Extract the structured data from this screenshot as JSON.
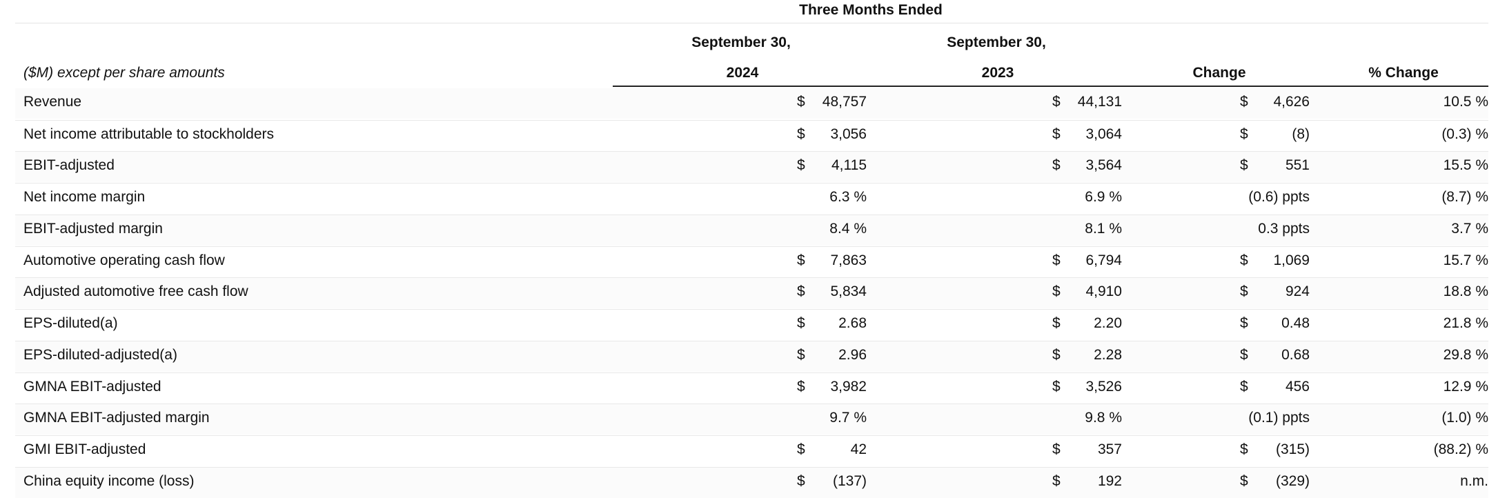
{
  "header": {
    "group": "Three Months Ended",
    "col1_top": "September 30,",
    "col1_bottom": "2024",
    "col2_top": "September 30,",
    "col2_bottom": "2023",
    "col3": "Change",
    "col4": "% Change",
    "row_label": "($M) except per share amounts"
  },
  "rows": [
    {
      "label": "Revenue",
      "d1": "$",
      "v1": "48,757",
      "d2": "$",
      "v2": "44,131",
      "d3": "$",
      "v3": "4,626",
      "v4": "10.5 %"
    },
    {
      "label": "Net income attributable to stockholders",
      "d1": "$",
      "v1": "3,056",
      "d2": "$",
      "v2": "3,064",
      "d3": "$",
      "v3": "(8)",
      "v4": "(0.3) %"
    },
    {
      "label": "EBIT-adjusted",
      "d1": "$",
      "v1": "4,115",
      "d2": "$",
      "v2": "3,564",
      "d3": "$",
      "v3": "551",
      "v4": "15.5 %"
    },
    {
      "label": "Net income margin",
      "d1": "",
      "v1": "6.3 %",
      "d2": "",
      "v2": "6.9 %",
      "d3": "",
      "v3": "(0.6) ppts",
      "v4": "(8.7) %"
    },
    {
      "label": "EBIT-adjusted margin",
      "d1": "",
      "v1": "8.4 %",
      "d2": "",
      "v2": "8.1 %",
      "d3": "",
      "v3": "0.3 ppts",
      "v4": "3.7 %"
    },
    {
      "label": "Automotive operating cash flow",
      "d1": "$",
      "v1": "7,863",
      "d2": "$",
      "v2": "6,794",
      "d3": "$",
      "v3": "1,069",
      "v4": "15.7 %"
    },
    {
      "label": "Adjusted automotive free cash flow",
      "d1": "$",
      "v1": "5,834",
      "d2": "$",
      "v2": "4,910",
      "d3": "$",
      "v3": "924",
      "v4": "18.8 %"
    },
    {
      "label": "EPS-diluted(a)",
      "d1": "$",
      "v1": "2.68",
      "d2": "$",
      "v2": "2.20",
      "d3": "$",
      "v3": "0.48",
      "v4": "21.8 %"
    },
    {
      "label": "EPS-diluted-adjusted(a)",
      "d1": "$",
      "v1": "2.96",
      "d2": "$",
      "v2": "2.28",
      "d3": "$",
      "v3": "0.68",
      "v4": "29.8 %"
    },
    {
      "label": "GMNA EBIT-adjusted",
      "d1": "$",
      "v1": "3,982",
      "d2": "$",
      "v2": "3,526",
      "d3": "$",
      "v3": "456",
      "v4": "12.9 %"
    },
    {
      "label": "GMNA EBIT-adjusted margin",
      "d1": "",
      "v1": "9.7 %",
      "d2": "",
      "v2": "9.8 %",
      "d3": "",
      "v3": "(0.1) ppts",
      "v4": "(1.0) %"
    },
    {
      "label": "GMI EBIT-adjusted",
      "d1": "$",
      "v1": "42",
      "d2": "$",
      "v2": "357",
      "d3": "$",
      "v3": "(315)",
      "v4": "(88.2) %"
    },
    {
      "label": "China equity income (loss)",
      "d1": "$",
      "v1": "(137)",
      "d2": "$",
      "v2": "192",
      "d3": "$",
      "v3": "(329)",
      "v4": "n.m."
    }
  ]
}
